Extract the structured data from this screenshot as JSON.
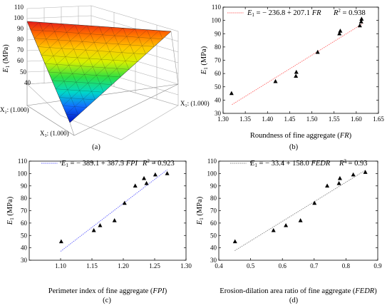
{
  "panels": {
    "a": {
      "caption": "(a)",
      "zlabel_main": "E",
      "zlabel_sub": "1",
      "zlabel_unit": " (MPa)",
      "z_ticks": [
        "110",
        "100",
        "90",
        "80",
        "70",
        "60",
        "50",
        "40"
      ],
      "vertex_labels": [
        "X₁: (1.000)",
        "X₂: (1.000)",
        "X₃: (1.000)"
      ]
    }
  },
  "chart_data": [
    {
      "id": "b",
      "type": "scatter",
      "caption": "(b)",
      "xlabel": "Roundness of fine aggregate (FR)",
      "xlabel_plain": "Roundness of fine aggregate (",
      "xlabel_ital": "FR",
      "xlabel_end": ")",
      "ylabel": "E1 (MPa)",
      "xlim": [
        1.3,
        1.65
      ],
      "ylim": [
        30,
        110
      ],
      "x_ticks": [
        "1.30",
        "1.35",
        "1.40",
        "1.45",
        "1.50",
        "1.55",
        "1.60",
        "1.65"
      ],
      "y_ticks": [
        "30",
        "40",
        "50",
        "60",
        "70",
        "80",
        "90",
        "100",
        "110"
      ],
      "fit": {
        "intercept": -236.8,
        "slope": 207.1,
        "x_range": [
          1.32,
          1.615
        ]
      },
      "eq_text": "= − 236.8 + 207.1",
      "eq_var": "FR",
      "r2_text": "= 0.938",
      "line_color": "#ff6a6a",
      "points": [
        {
          "x": 1.319,
          "y": 45
        },
        {
          "x": 1.418,
          "y": 54
        },
        {
          "x": 1.464,
          "y": 58
        },
        {
          "x": 1.465,
          "y": 61
        },
        {
          "x": 1.513,
          "y": 76
        },
        {
          "x": 1.562,
          "y": 90
        },
        {
          "x": 1.564,
          "y": 92
        },
        {
          "x": 1.608,
          "y": 96
        },
        {
          "x": 1.611,
          "y": 99
        },
        {
          "x": 1.612,
          "y": 101
        }
      ]
    },
    {
      "id": "c",
      "type": "scatter",
      "caption": "(c)",
      "xlabel": "Perimeter index of fine aggregate (FPI)",
      "xlabel_plain": "Perimeter index of fine aggregate (",
      "xlabel_ital": "FPI",
      "xlabel_end": ")",
      "ylabel": "E1 (MPa)",
      "xlim": [
        1.05,
        1.3
      ],
      "ylim": [
        30,
        110
      ],
      "x_ticks": [
        "1.10",
        "1.15",
        "1.20",
        "1.25",
        "1.30"
      ],
      "x_tick_values": [
        1.1,
        1.15,
        1.2,
        1.25,
        1.3
      ],
      "y_ticks": [
        "30",
        "40",
        "50",
        "60",
        "70",
        "80",
        "90",
        "100",
        "110"
      ],
      "fit": {
        "intercept": -389.1,
        "slope": 387.5,
        "x_range": [
          1.1,
          1.27
        ]
      },
      "eq_text": "= − 389.1 + 387.5",
      "eq_var": "FPI",
      "r2_text": "= 0.923",
      "line_color": "#6666ff",
      "points": [
        {
          "x": 1.101,
          "y": 45
        },
        {
          "x": 1.153,
          "y": 54
        },
        {
          "x": 1.163,
          "y": 58
        },
        {
          "x": 1.186,
          "y": 62
        },
        {
          "x": 1.202,
          "y": 76
        },
        {
          "x": 1.219,
          "y": 90
        },
        {
          "x": 1.233,
          "y": 96
        },
        {
          "x": 1.237,
          "y": 92
        },
        {
          "x": 1.251,
          "y": 99
        },
        {
          "x": 1.27,
          "y": 100
        }
      ]
    },
    {
      "id": "d",
      "type": "scatter",
      "caption": "(d)",
      "xlabel": "Erosion-dilation area ratio of fine aggregate (FEDR)",
      "xlabel_plain": "Erosion-dilation area ratio of fine aggregate (",
      "xlabel_ital": "FEDR",
      "xlabel_end": ")",
      "ylabel": "E1 (MPa)",
      "xlim": [
        0.4,
        0.9
      ],
      "ylim": [
        30,
        110
      ],
      "x_ticks": [
        "0.4",
        "0.5",
        "0.6",
        "0.7",
        "0.8",
        "0.9"
      ],
      "y_ticks": [
        "30",
        "40",
        "50",
        "60",
        "70",
        "80",
        "90",
        "100",
        "110"
      ],
      "fit": {
        "intercept": -33.4,
        "slope": 158.0,
        "x_range": [
          0.45,
          0.86
        ]
      },
      "eq_text": "= − 33.4 + 158.0",
      "eq_var": "FEDR",
      "r2_text": "= 0.93",
      "line_color": "#888888",
      "points": [
        {
          "x": 0.451,
          "y": 45
        },
        {
          "x": 0.572,
          "y": 54
        },
        {
          "x": 0.611,
          "y": 58
        },
        {
          "x": 0.657,
          "y": 62
        },
        {
          "x": 0.701,
          "y": 76
        },
        {
          "x": 0.741,
          "y": 90
        },
        {
          "x": 0.778,
          "y": 92
        },
        {
          "x": 0.781,
          "y": 96
        },
        {
          "x": 0.823,
          "y": 99
        },
        {
          "x": 0.861,
          "y": 101
        }
      ]
    }
  ]
}
